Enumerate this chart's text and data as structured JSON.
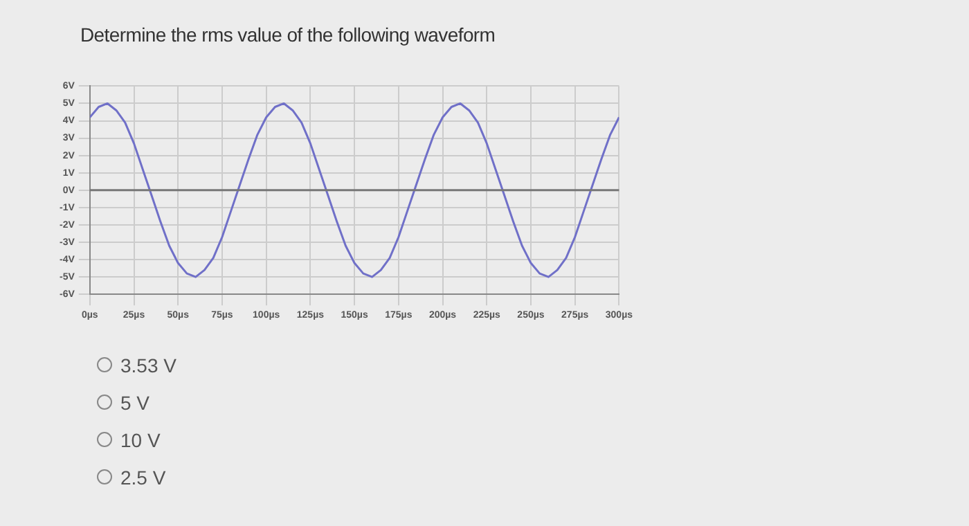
{
  "chart_data": {
    "type": "line",
    "title": "Determine the rms value of the following waveform",
    "x": [
      0,
      5,
      10,
      15,
      20,
      25,
      30,
      35,
      40,
      45,
      50,
      55,
      60,
      65,
      70,
      75,
      80,
      85,
      90,
      95,
      100,
      105,
      110,
      115,
      120,
      125,
      130,
      135,
      140,
      145,
      150,
      155,
      160,
      165,
      170,
      175,
      180,
      185,
      190,
      195,
      200,
      205,
      210,
      215,
      220,
      225,
      230,
      235,
      240,
      245,
      250,
      255,
      260,
      265,
      270,
      275,
      280,
      285,
      290,
      295,
      300
    ],
    "series": [
      {
        "color": "#7070c8",
        "values": [
          4.2,
          4.8,
          5.0,
          4.6,
          3.9,
          2.7,
          1.2,
          -0.3,
          -1.8,
          -3.2,
          -4.2,
          -4.8,
          -5.0,
          -4.6,
          -3.9,
          -2.7,
          -1.2,
          0.3,
          1.8,
          3.2,
          4.2,
          4.8,
          5.0,
          4.6,
          3.9,
          2.7,
          1.2,
          -0.3,
          -1.8,
          -3.2,
          -4.2,
          -4.8,
          -5.0,
          -4.6,
          -3.9,
          -2.7,
          -1.2,
          0.3,
          1.8,
          3.2,
          4.2,
          4.8,
          5.0,
          4.6,
          3.9,
          2.7,
          1.2,
          -0.3,
          -1.8,
          -3.2,
          -4.2,
          -4.8,
          -5.0,
          -4.6,
          -3.9,
          -2.7,
          -1.2,
          0.3,
          1.8,
          3.2,
          4.2
        ]
      }
    ],
    "xlim": [
      0,
      300
    ],
    "xticks": [
      {
        "value": 0,
        "label": "0µs"
      },
      {
        "value": 25,
        "label": "25µs"
      },
      {
        "value": 50,
        "label": "50µs"
      },
      {
        "value": 75,
        "label": "75µs"
      },
      {
        "value": 100,
        "label": "100µs"
      },
      {
        "value": 125,
        "label": "125µs"
      },
      {
        "value": 150,
        "label": "150µs"
      },
      {
        "value": 175,
        "label": "175µs"
      },
      {
        "value": 200,
        "label": "200µs"
      },
      {
        "value": 225,
        "label": "225µs"
      },
      {
        "value": 250,
        "label": "250µs"
      },
      {
        "value": 275,
        "label": "275µs"
      },
      {
        "value": 300,
        "label": "300µs"
      }
    ],
    "ylim": [
      -6,
      6
    ],
    "yticks": [
      {
        "value": -6,
        "label": "-6V"
      },
      {
        "value": -5,
        "label": "-5V"
      },
      {
        "value": -4,
        "label": "-4V"
      },
      {
        "value": -3,
        "label": "-3V"
      },
      {
        "value": -2,
        "label": "-2V"
      },
      {
        "value": -1,
        "label": "-1V"
      },
      {
        "value": 0,
        "label": "0V"
      },
      {
        "value": 1,
        "label": "1V"
      },
      {
        "value": 2,
        "label": "2V"
      },
      {
        "value": 3,
        "label": "3V"
      },
      {
        "value": 4,
        "label": "4V"
      },
      {
        "value": 5,
        "label": "5V"
      },
      {
        "value": 6,
        "label": "6V"
      }
    ],
    "ref_lines": [
      {
        "axis": "y",
        "value": 0,
        "color": "#777777"
      }
    ],
    "grid": true,
    "marker": "none",
    "line_style": "solid",
    "legend": false,
    "annotations": [
      "3.53 V",
      "5 V",
      "10 V",
      "2.5 V"
    ]
  }
}
